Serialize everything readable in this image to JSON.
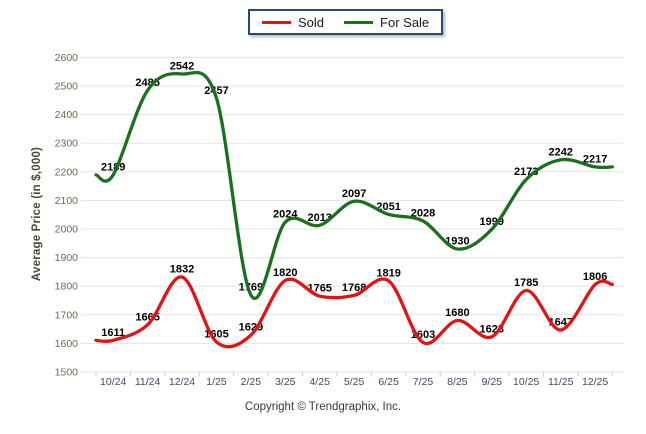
{
  "legend": {
    "items": [
      {
        "label": "Sold",
        "color": "#e11414"
      },
      {
        "label": "For Sale",
        "color": "#1b701b"
      }
    ]
  },
  "footer": {
    "text": "Copyright © Trendgraphix, Inc."
  },
  "chart_data": {
    "type": "line",
    "title": "",
    "xlabel": "",
    "ylabel": "Average Price (in $,000)",
    "categories": [
      "10/24",
      "11/24",
      "12/24",
      "1/25",
      "2/25",
      "3/25",
      "4/25",
      "5/25",
      "6/25",
      "7/25",
      "8/25",
      "9/25",
      "10/25",
      "11/25",
      "12/25"
    ],
    "series": [
      {
        "name": "Sold",
        "color": "#e11414",
        "values": [
          1611,
          1665,
          1832,
          1605,
          1629,
          1820,
          1765,
          1768,
          1819,
          1603,
          1680,
          1623,
          1785,
          1647,
          1806
        ]
      },
      {
        "name": "For Sale",
        "color": "#1b701b",
        "values": [
          2189,
          2485,
          2542,
          2457,
          1769,
          2024,
          2013,
          2097,
          2051,
          2028,
          1930,
          1999,
          2173,
          2242,
          2217
        ]
      }
    ],
    "ylim": [
      1500,
      2600
    ],
    "ytick_step": 100,
    "yticks": [
      "2600",
      "2500",
      "2400",
      "2300",
      "2200",
      "2100",
      "2000",
      "1900",
      "1800",
      "1700",
      "1600",
      "1500"
    ],
    "grid": "horizontal",
    "legend_position": "top-center",
    "colors": {
      "gridline": "#e3e3e3",
      "axis_tick": "#c9ced6"
    }
  }
}
